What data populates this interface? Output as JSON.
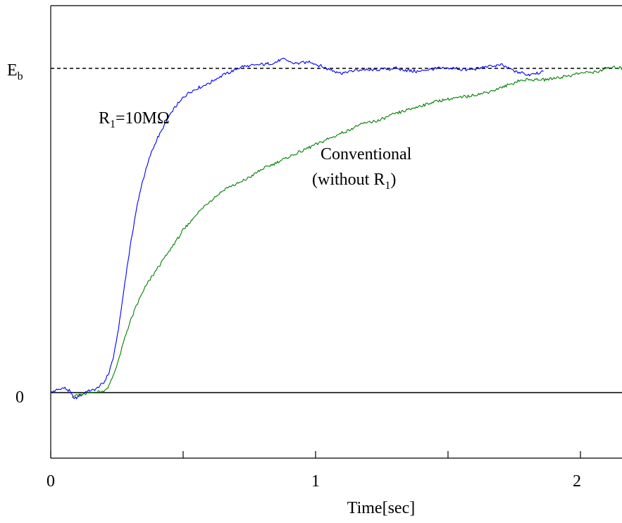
{
  "chart_data": {
    "type": "line",
    "xlabel": "Time[sec]",
    "ylabel": "",
    "xlim": [
      0,
      2.17
    ],
    "ylim": [
      -0.19,
      1.18
    ],
    "x_ticks": [
      0,
      1,
      2
    ],
    "x_tick_labels": [
      "0",
      "1",
      "2"
    ],
    "x_minor_ticks": [
      0.5,
      1.5
    ],
    "y_tick_labels": {
      "zero": "0",
      "eb_main": "E",
      "eb_sub": "b"
    },
    "reference_lines": [
      {
        "name": "zero-line",
        "y": 0,
        "style": "solid"
      },
      {
        "name": "eb-line",
        "y": 1.0,
        "style": "dashed"
      }
    ],
    "series": [
      {
        "color": "#0000ff",
        "x": [
          0,
          0.03,
          0.05,
          0.07,
          0.09,
          0.11,
          0.14,
          0.17,
          0.2,
          0.22,
          0.24,
          0.26,
          0.28,
          0.3,
          0.32,
          0.34,
          0.36,
          0.38,
          0.4,
          0.42,
          0.44,
          0.46,
          0.48,
          0.5,
          0.53,
          0.56,
          0.6,
          0.64,
          0.68,
          0.72,
          0.78,
          0.84,
          0.88,
          0.92,
          0.98,
          1.04,
          1.1,
          1.16,
          1.22,
          1.3,
          1.38,
          1.46,
          1.52,
          1.58,
          1.64,
          1.7,
          1.76,
          1.8,
          1.86
        ],
        "y": [
          0.0,
          0.01,
          0.015,
          0.005,
          -0.02,
          -0.01,
          0.005,
          0.01,
          0.03,
          0.06,
          0.12,
          0.22,
          0.34,
          0.45,
          0.55,
          0.63,
          0.69,
          0.74,
          0.78,
          0.81,
          0.84,
          0.87,
          0.89,
          0.91,
          0.93,
          0.94,
          0.955,
          0.975,
          0.99,
          1.005,
          1.01,
          1.015,
          1.03,
          1.015,
          1.02,
          1.0,
          0.985,
          0.995,
          0.995,
          1.0,
          0.99,
          1.0,
          1.0,
          0.995,
          1.005,
          1.01,
          0.99,
          0.98,
          0.99
        ]
      },
      {
        "color": "#008000",
        "x": [
          0.08,
          0.12,
          0.16,
          0.2,
          0.22,
          0.24,
          0.26,
          0.28,
          0.3,
          0.33,
          0.36,
          0.4,
          0.45,
          0.5,
          0.55,
          0.6,
          0.66,
          0.72,
          0.8,
          0.88,
          0.96,
          1.04,
          1.1,
          1.18,
          1.24,
          1.3,
          1.38,
          1.46,
          1.54,
          1.62,
          1.7,
          1.76,
          1.8,
          1.86,
          1.94,
          2.0,
          2.06,
          2.1,
          2.14,
          2.17
        ],
        "y": [
          -0.01,
          -0.005,
          0.0,
          0.005,
          0.02,
          0.06,
          0.11,
          0.17,
          0.22,
          0.28,
          0.33,
          0.38,
          0.44,
          0.5,
          0.55,
          0.59,
          0.63,
          0.65,
          0.69,
          0.72,
          0.75,
          0.78,
          0.8,
          0.83,
          0.84,
          0.86,
          0.88,
          0.9,
          0.91,
          0.92,
          0.94,
          0.96,
          0.965,
          0.965,
          0.975,
          0.985,
          0.99,
          1.0,
          1.005,
          0.99
        ]
      }
    ],
    "annotations": [
      {
        "id": "r1",
        "main": "R",
        "sub": "1",
        "rest": "=10MΩ"
      },
      {
        "id": "conventional",
        "line1": "Conventional",
        "line2_pre": "(without R",
        "line2_sub": "1",
        "line2_post": ")"
      }
    ]
  }
}
